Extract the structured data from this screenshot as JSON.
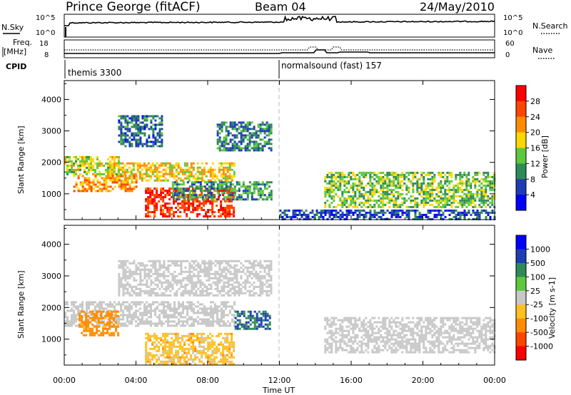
{
  "header": {
    "station": "Prince George (fitACF)",
    "beam": "Beam 04",
    "date": "24/May/2010"
  },
  "noise_panel": {
    "left_label": "N.Sky",
    "left_ticks": [
      "10^5",
      "10^0"
    ],
    "right_ticks": [
      "10^5",
      "10^0"
    ],
    "right_label": "N.Search"
  },
  "freq_panel": {
    "left_label_1": "Freq.",
    "left_label_2": "[MHz]",
    "left_ticks": [
      "18",
      "8"
    ],
    "right_ticks": [
      "60",
      "0"
    ],
    "right_label": "Nave"
  },
  "cpid": {
    "label": "CPID",
    "programs": [
      {
        "name": "themis 3300",
        "start_hour": 0
      },
      {
        "name": "normalsound (fast) 157",
        "start_hour": 12
      }
    ]
  },
  "x_ticks": [
    "00:00",
    "04:00",
    "08:00",
    "12:00",
    "16:00",
    "20:00",
    "00:00"
  ],
  "x_label": "Time UT",
  "colors": {
    "power": [
      "#0000ff",
      "#1e3cb4",
      "#2e8b57",
      "#5cc93c",
      "#ffd700",
      "#ff8c00",
      "#ff4500",
      "#ff0000"
    ],
    "velocity": [
      "#ff0000",
      "#ff4500",
      "#ff8c00",
      "#ffc020",
      "#c8c8c8",
      "#c8c8c8",
      "#5cc93c",
      "#2e8b57",
      "#1e3cb4",
      "#0000ff"
    ]
  },
  "chart_data": [
    {
      "type": "heatmap",
      "quantity": "power",
      "ylabel": "Slant Range [km]",
      "xlim": [
        0,
        24
      ],
      "ylim": [
        180,
        4600
      ],
      "y_ticks": [
        "1000",
        "2000",
        "3000",
        "4000"
      ],
      "colorbar_label": "Power [dB]",
      "colorbar_ticks": [
        "4",
        "8",
        "12",
        "16",
        "20",
        "24",
        "28"
      ],
      "regions": [
        {
          "x": [
            0,
            3
          ],
          "range": [
            1600,
            2200
          ],
          "value": 16
        },
        {
          "x": [
            2.5,
            9.5
          ],
          "range": [
            1400,
            2000
          ],
          "value": 19
        },
        {
          "x": [
            0.5,
            4
          ],
          "range": [
            1100,
            1600
          ],
          "value": 22
        },
        {
          "x": [
            4.5,
            9.5
          ],
          "range": [
            250,
            1200
          ],
          "value": 27
        },
        {
          "x": [
            6,
            11.5
          ],
          "range": [
            800,
            1400
          ],
          "value": 11
        },
        {
          "x": [
            3,
            5.5
          ],
          "range": [
            2500,
            3500
          ],
          "value": 8
        },
        {
          "x": [
            8.5,
            11.5
          ],
          "range": [
            2400,
            3300
          ],
          "value": 9
        },
        {
          "x": [
            14.5,
            24
          ],
          "range": [
            600,
            1700
          ],
          "value": 14
        },
        {
          "x": [
            12,
            24
          ],
          "range": [
            200,
            500
          ],
          "value": 6
        }
      ]
    },
    {
      "type": "heatmap",
      "quantity": "velocity",
      "ylabel": "Slant Range [km]",
      "xlim": [
        0,
        24
      ],
      "ylim": [
        180,
        4600
      ],
      "y_ticks": [
        "1000",
        "2000",
        "3000",
        "4000"
      ],
      "colorbar_label": "Velocity [m s-1]",
      "colorbar_ticks": [
        "1000",
        "500",
        "100",
        "25",
        "-25",
        "-100",
        "-500",
        "-1000"
      ],
      "regions": [
        {
          "x": [
            0,
            9.5
          ],
          "range": [
            1400,
            2200
          ],
          "value": 0
        },
        {
          "x": [
            0.8,
            3
          ],
          "range": [
            1100,
            1900
          ],
          "value": -200
        },
        {
          "x": [
            4.5,
            9.5
          ],
          "range": [
            250,
            1200
          ],
          "value": -60
        },
        {
          "x": [
            9.5,
            11.5
          ],
          "range": [
            1300,
            1900
          ],
          "value": 500
        },
        {
          "x": [
            14.5,
            24
          ],
          "range": [
            600,
            1700
          ],
          "value": 0
        },
        {
          "x": [
            3,
            11.5
          ],
          "range": [
            2400,
            3500
          ],
          "value": 0
        }
      ]
    }
  ]
}
